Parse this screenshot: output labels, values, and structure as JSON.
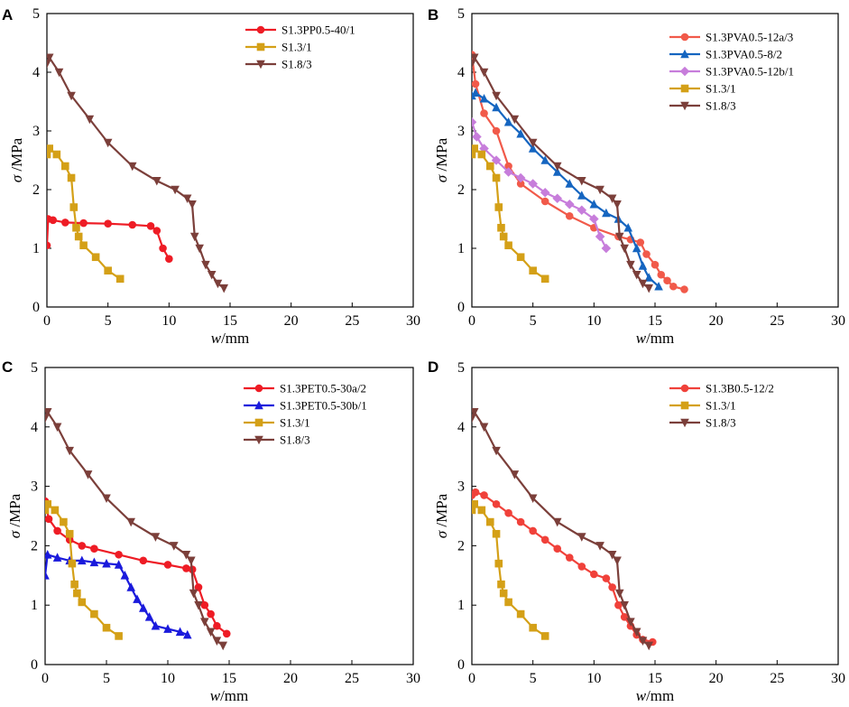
{
  "chart_data": [
    {
      "panel": "A",
      "type": "line",
      "xlabel": "w/mm",
      "xlabel_italic": "w",
      "xlabel_unit": "/mm",
      "ylabel": "σ /MPa",
      "ylabel_symbol": "σ",
      "ylabel_unit": " /MPa",
      "xlim": [
        0,
        30
      ],
      "ylim": [
        0,
        5
      ],
      "xticks": [
        "0",
        "5",
        "10",
        "15",
        "20",
        "25",
        "30"
      ],
      "yticks": [
        "0",
        "1",
        "2",
        "3",
        "4",
        "5"
      ],
      "series": [
        {
          "name": "S1.3PP0.5-40/1",
          "color": "#ee1c25",
          "marker": "circle",
          "x": [
            0,
            0.1,
            0.5,
            1.5,
            3,
            5,
            7,
            8.5,
            9,
            9.5,
            10
          ],
          "y": [
            1.05,
            1.5,
            1.48,
            1.44,
            1.43,
            1.42,
            1.4,
            1.38,
            1.3,
            1.0,
            0.82
          ]
        },
        {
          "name": "S1.3/1",
          "color": "#d4a017",
          "marker": "square",
          "x": [
            0,
            0.2,
            0.8,
            1.5,
            2.0,
            2.2,
            2.4,
            2.6,
            3,
            4,
            5,
            6
          ],
          "y": [
            2.6,
            2.7,
            2.6,
            2.4,
            2.2,
            1.7,
            1.35,
            1.2,
            1.05,
            0.85,
            0.62,
            0.48
          ]
        },
        {
          "name": "S1.8/3",
          "color": "#7b3f3a",
          "marker": "triangle-down",
          "x": [
            0,
            0.2,
            1,
            2,
            3.5,
            5,
            7,
            9,
            10.5,
            11.5,
            11.9,
            12.1,
            12.5,
            13,
            13.5,
            14,
            14.5
          ],
          "y": [
            4.15,
            4.25,
            4.0,
            3.6,
            3.2,
            2.8,
            2.4,
            2.15,
            2.0,
            1.85,
            1.75,
            1.2,
            1.0,
            0.72,
            0.55,
            0.4,
            0.32
          ]
        }
      ]
    },
    {
      "panel": "B",
      "type": "line",
      "xlabel": "w/mm",
      "xlabel_italic": "w",
      "xlabel_unit": "/mm",
      "ylabel": "σ /MPa",
      "ylabel_symbol": "σ",
      "ylabel_unit": " /MPa",
      "xlim": [
        0,
        30
      ],
      "ylim": [
        0,
        5
      ],
      "xticks": [
        "0",
        "5",
        "10",
        "15",
        "20",
        "25",
        "30"
      ],
      "yticks": [
        "0",
        "1",
        "2",
        "3",
        "4",
        "5"
      ],
      "series": [
        {
          "name": "S1.3PVA0.5-12a/3",
          "color": "#f15a4a",
          "marker": "circle",
          "x": [
            0,
            0.3,
            1,
            2,
            3,
            4,
            6,
            8,
            10,
            12,
            13,
            13.8,
            14.3,
            15,
            15.5,
            16,
            16.5,
            17.4
          ],
          "y": [
            4.3,
            3.8,
            3.3,
            3.0,
            2.4,
            2.1,
            1.8,
            1.55,
            1.35,
            1.2,
            1.15,
            1.1,
            0.9,
            0.72,
            0.55,
            0.45,
            0.35,
            0.3
          ]
        },
        {
          "name": "S1.3PVA0.5-8/2",
          "color": "#1565c0",
          "marker": "triangle-up",
          "x": [
            0,
            0.3,
            1,
            2,
            3,
            4,
            5,
            6,
            7,
            8,
            9,
            10,
            11,
            12,
            12.8,
            13.5,
            14,
            14.5,
            15.3
          ],
          "y": [
            3.6,
            3.65,
            3.55,
            3.4,
            3.15,
            2.95,
            2.7,
            2.5,
            2.3,
            2.1,
            1.9,
            1.75,
            1.6,
            1.5,
            1.35,
            1.0,
            0.7,
            0.5,
            0.35
          ]
        },
        {
          "name": "S1.3PVA0.5-12b/1",
          "color": "#c77ddb",
          "marker": "diamond",
          "x": [
            0,
            0.4,
            1,
            2,
            3,
            4,
            5,
            6,
            7,
            8,
            9,
            10,
            10.5,
            11
          ],
          "y": [
            3.15,
            2.9,
            2.7,
            2.5,
            2.3,
            2.2,
            2.1,
            1.95,
            1.85,
            1.75,
            1.65,
            1.5,
            1.2,
            1.0
          ]
        },
        {
          "name": "S1.3/1",
          "color": "#d4a017",
          "marker": "square",
          "x": [
            0,
            0.2,
            0.8,
            1.5,
            2.0,
            2.2,
            2.4,
            2.6,
            3,
            4,
            5,
            6
          ],
          "y": [
            2.6,
            2.7,
            2.6,
            2.4,
            2.2,
            1.7,
            1.35,
            1.2,
            1.05,
            0.85,
            0.62,
            0.48
          ]
        },
        {
          "name": "S1.8/3",
          "color": "#7b3f3a",
          "marker": "triangle-down",
          "x": [
            0,
            0.2,
            1,
            2,
            3.5,
            5,
            7,
            9,
            10.5,
            11.5,
            11.9,
            12.1,
            12.5,
            13,
            13.5,
            14,
            14.5
          ],
          "y": [
            4.15,
            4.25,
            4.0,
            3.6,
            3.2,
            2.8,
            2.4,
            2.15,
            2.0,
            1.85,
            1.75,
            1.2,
            1.0,
            0.72,
            0.55,
            0.4,
            0.32
          ]
        }
      ]
    },
    {
      "panel": "C",
      "type": "line",
      "xlabel": "w/mm",
      "xlabel_italic": "w",
      "xlabel_unit": "/mm",
      "ylabel": "σ /MPa",
      "ylabel_symbol": "σ",
      "ylabel_unit": " /MPa",
      "xlim": [
        0,
        30
      ],
      "ylim": [
        0,
        5
      ],
      "xticks": [
        "0",
        "5",
        "10",
        "15",
        "20",
        "25",
        "30"
      ],
      "yticks": [
        "0",
        "1",
        "2",
        "3",
        "4",
        "5"
      ],
      "series": [
        {
          "name": "S1.3PET0.5-30a/2",
          "color": "#ee1c25",
          "marker": "circle",
          "x": [
            0,
            0.3,
            1,
            2,
            3,
            4,
            6,
            8,
            10,
            11.5,
            12,
            12.5,
            13,
            13.5,
            14,
            14.8
          ],
          "y": [
            2.75,
            2.45,
            2.25,
            2.1,
            2.0,
            1.95,
            1.85,
            1.75,
            1.68,
            1.62,
            1.6,
            1.3,
            1.0,
            0.85,
            0.65,
            0.52
          ]
        },
        {
          "name": "S1.3PET0.5-30b/1",
          "color": "#1a1adc",
          "marker": "triangle-up",
          "x": [
            0,
            0.2,
            1,
            2,
            3,
            4,
            5,
            6,
            6.5,
            7,
            7.5,
            8,
            8.5,
            9,
            10,
            11,
            11.6
          ],
          "y": [
            1.5,
            1.85,
            1.8,
            1.75,
            1.75,
            1.72,
            1.7,
            1.68,
            1.5,
            1.3,
            1.1,
            0.95,
            0.8,
            0.65,
            0.6,
            0.55,
            0.5
          ]
        },
        {
          "name": "S1.3/1",
          "color": "#d4a017",
          "marker": "square",
          "x": [
            0,
            0.2,
            0.8,
            1.5,
            2.0,
            2.2,
            2.4,
            2.6,
            3,
            4,
            5,
            6
          ],
          "y": [
            2.6,
            2.7,
            2.6,
            2.4,
            2.2,
            1.7,
            1.35,
            1.2,
            1.05,
            0.85,
            0.62,
            0.48
          ]
        },
        {
          "name": "S1.8/3",
          "color": "#7b3f3a",
          "marker": "triangle-down",
          "x": [
            0,
            0.2,
            1,
            2,
            3.5,
            5,
            7,
            9,
            10.5,
            11.5,
            11.9,
            12.1,
            12.5,
            13,
            13.5,
            14,
            14.5
          ],
          "y": [
            4.15,
            4.25,
            4.0,
            3.6,
            3.2,
            2.8,
            2.4,
            2.15,
            2.0,
            1.85,
            1.75,
            1.2,
            1.0,
            0.72,
            0.55,
            0.4,
            0.32
          ]
        }
      ]
    },
    {
      "panel": "D",
      "type": "line",
      "xlabel": "w/mm",
      "xlabel_italic": "w",
      "xlabel_unit": "/mm",
      "ylabel": "σ /MPa",
      "ylabel_symbol": "σ",
      "ylabel_unit": " /MPa",
      "xlim": [
        0,
        30
      ],
      "ylim": [
        0,
        5
      ],
      "xticks": [
        "0",
        "5",
        "10",
        "15",
        "20",
        "25",
        "30"
      ],
      "yticks": [
        "0",
        "1",
        "2",
        "3",
        "4",
        "5"
      ],
      "series": [
        {
          "name": "S1.3B0.5-12/2",
          "color": "#f0413a",
          "marker": "circle",
          "x": [
            0,
            0.3,
            1,
            2,
            3,
            4,
            5,
            6,
            7,
            8,
            9,
            10,
            11,
            11.5,
            12,
            12.5,
            13,
            13.5,
            14,
            14.8
          ],
          "y": [
            2.85,
            2.9,
            2.85,
            2.7,
            2.55,
            2.4,
            2.25,
            2.1,
            1.95,
            1.8,
            1.65,
            1.52,
            1.45,
            1.3,
            1.0,
            0.8,
            0.65,
            0.5,
            0.42,
            0.38
          ]
        },
        {
          "name": "S1.3/1",
          "color": "#d4a017",
          "marker": "square",
          "x": [
            0,
            0.2,
            0.8,
            1.5,
            2.0,
            2.2,
            2.4,
            2.6,
            3,
            4,
            5,
            6
          ],
          "y": [
            2.6,
            2.7,
            2.6,
            2.4,
            2.2,
            1.7,
            1.35,
            1.2,
            1.05,
            0.85,
            0.62,
            0.48
          ]
        },
        {
          "name": "S1.8/3",
          "color": "#7b3f3a",
          "marker": "triangle-down",
          "x": [
            0,
            0.2,
            1,
            2,
            3.5,
            5,
            7,
            9,
            10.5,
            11.5,
            11.9,
            12.1,
            12.5,
            13,
            13.5,
            14,
            14.5
          ],
          "y": [
            4.15,
            4.25,
            4.0,
            3.6,
            3.2,
            2.8,
            2.4,
            2.15,
            2.0,
            1.85,
            1.75,
            1.2,
            1.0,
            0.72,
            0.55,
            0.4,
            0.32
          ]
        }
      ]
    }
  ]
}
